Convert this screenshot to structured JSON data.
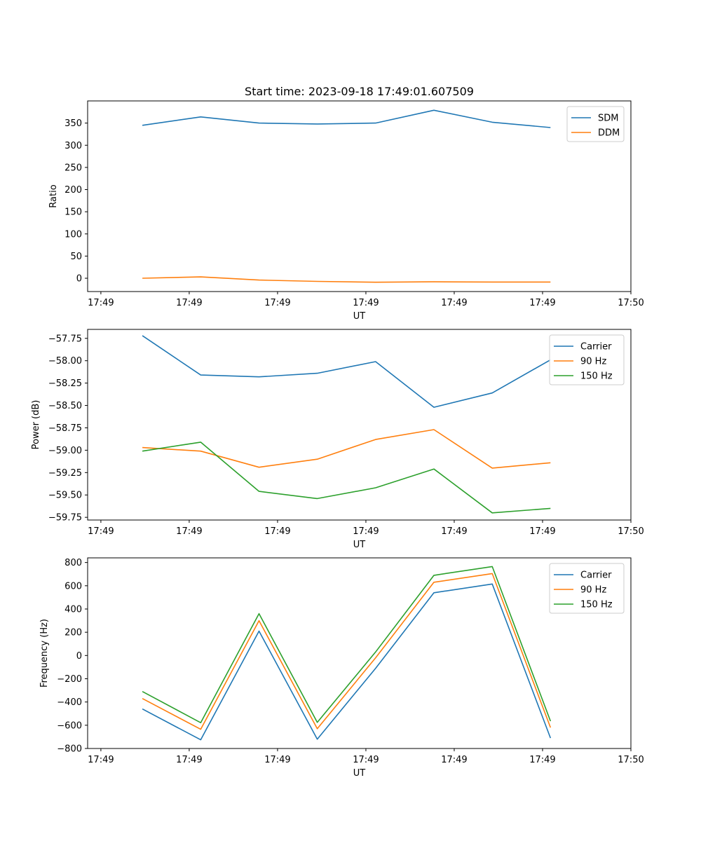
{
  "chart_data": [
    {
      "type": "line",
      "title": "Start time: 2023-09-18 17:49:01.607509",
      "xlabel": "UT",
      "ylabel": "Ratio",
      "x_ticks": [
        "17:49",
        "17:49",
        "17:49",
        "17:49",
        "17:49",
        "17:49",
        "17:50"
      ],
      "x_tick_positions": [
        0,
        1,
        2,
        3,
        4,
        5,
        6
      ],
      "xlim": [
        -0.15,
        6.0
      ],
      "x": [
        0.47,
        1.13,
        1.79,
        2.45,
        3.11,
        3.77,
        4.43,
        5.09
      ],
      "ylim": [
        -30,
        400
      ],
      "y_ticks": [
        0,
        50,
        100,
        150,
        200,
        250,
        300,
        350
      ],
      "legend_position": "top-right",
      "series": [
        {
          "name": "SDM",
          "color": "#1f77b4",
          "values": [
            345,
            364,
            350,
            348,
            350,
            379,
            352,
            340
          ]
        },
        {
          "name": "DDM",
          "color": "#ff7f0e",
          "values": [
            0,
            3,
            -4,
            -7,
            -9,
            -8,
            -8.5,
            -8.5
          ]
        }
      ]
    },
    {
      "type": "line",
      "title": "",
      "xlabel": "UT",
      "ylabel": "Power (dB)",
      "x_ticks": [
        "17:49",
        "17:49",
        "17:49",
        "17:49",
        "17:49",
        "17:49",
        "17:50"
      ],
      "x_tick_positions": [
        0,
        1,
        2,
        3,
        4,
        5,
        6
      ],
      "xlim": [
        -0.15,
        6.0
      ],
      "x": [
        0.47,
        1.13,
        1.79,
        2.45,
        3.11,
        3.77,
        4.43,
        5.09
      ],
      "ylim": [
        -59.78,
        -57.65
      ],
      "y_ticks": [
        -59.75,
        -59.5,
        -59.25,
        -59.0,
        -58.75,
        -58.5,
        -58.25,
        -58.0,
        -57.75
      ],
      "y_tick_labels": [
        "−59.75",
        "−59.50",
        "−59.25",
        "−59.00",
        "−58.75",
        "−58.50",
        "−58.25",
        "−58.00",
        "−57.75"
      ],
      "legend_position": "top-right",
      "series": [
        {
          "name": "Carrier",
          "color": "#1f77b4",
          "values": [
            -57.72,
            -58.16,
            -58.18,
            -58.14,
            -58.01,
            -58.52,
            -58.36,
            -57.99
          ]
        },
        {
          "name": "90 Hz",
          "color": "#ff7f0e",
          "values": [
            -58.97,
            -59.01,
            -59.19,
            -59.1,
            -58.88,
            -58.77,
            -59.2,
            -59.14
          ]
        },
        {
          "name": "150 Hz",
          "color": "#2ca02c",
          "values": [
            -59.01,
            -58.91,
            -59.46,
            -59.54,
            -59.42,
            -59.21,
            -59.7,
            -59.65
          ]
        }
      ]
    },
    {
      "type": "line",
      "title": "",
      "xlabel": "UT",
      "ylabel": "Frequency (Hz)",
      "x_ticks": [
        "17:49",
        "17:49",
        "17:49",
        "17:49",
        "17:49",
        "17:49",
        "17:50"
      ],
      "x_tick_positions": [
        0,
        1,
        2,
        3,
        4,
        5,
        6
      ],
      "xlim": [
        -0.15,
        6.0
      ],
      "x": [
        0.47,
        1.13,
        1.79,
        2.45,
        3.11,
        3.77,
        4.43,
        5.09
      ],
      "ylim": [
        -800,
        840
      ],
      "y_ticks": [
        -800,
        -600,
        -400,
        -200,
        0,
        200,
        400,
        600,
        800
      ],
      "y_tick_labels": [
        "−800",
        "−600",
        "−400",
        "−200",
        "0",
        "200",
        "400",
        "600",
        "800"
      ],
      "legend_position": "top-right",
      "series": [
        {
          "name": "Carrier",
          "color": "#1f77b4",
          "values": [
            -460,
            -725,
            210,
            -720,
            -110,
            540,
            615,
            -710
          ]
        },
        {
          "name": "90 Hz",
          "color": "#ff7f0e",
          "values": [
            -370,
            -635,
            300,
            -630,
            -20,
            630,
            705,
            -620
          ]
        },
        {
          "name": "150 Hz",
          "color": "#2ca02c",
          "values": [
            -310,
            -578,
            360,
            -575,
            30,
            690,
            765,
            -565
          ]
        }
      ]
    }
  ]
}
